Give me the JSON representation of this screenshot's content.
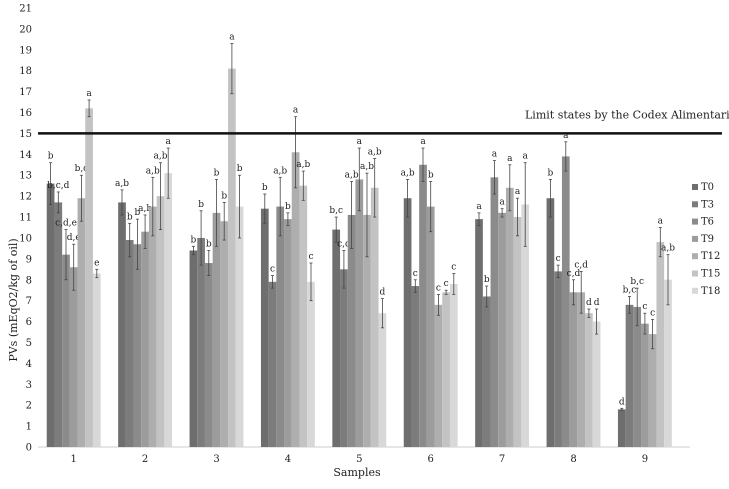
{
  "chart_data": {
    "type": "bar",
    "title": "",
    "xlabel": "Samples",
    "ylabel": "PVs (mEqO2/kg of oil)",
    "ylim": [
      0,
      21
    ],
    "yticks": [
      0,
      1,
      2,
      3,
      4,
      5,
      6,
      7,
      8,
      9,
      10,
      11,
      12,
      13,
      14,
      15,
      16,
      17,
      18,
      19,
      20,
      21
    ],
    "grid": false,
    "legend_position": "right",
    "categories": [
      "1",
      "2",
      "3",
      "4",
      "5",
      "6",
      "7",
      "8",
      "9"
    ],
    "series": [
      {
        "name": "T0",
        "color": "#6e6e6e",
        "values": [
          12.6,
          11.7,
          9.4,
          11.4,
          10.4,
          11.9,
          10.9,
          11.9,
          1.8
        ],
        "errors": [
          1.0,
          0.6,
          0.2,
          0.7,
          0.6,
          0.9,
          0.3,
          0.9,
          0.05
        ],
        "letters": [
          "b",
          "a,b",
          "b",
          "b",
          "b,c",
          "a,b",
          "a",
          "b",
          "d"
        ]
      },
      {
        "name": "T3",
        "color": "#7c7c7c",
        "values": [
          11.7,
          9.9,
          10.0,
          7.9,
          8.5,
          7.7,
          7.2,
          8.4,
          6.8
        ],
        "errors": [
          0.5,
          0.8,
          1.3,
          0.3,
          0.9,
          0.3,
          0.5,
          0.3,
          0.4
        ],
        "letters": [
          "b,c,d",
          "b",
          "b",
          "c",
          "c,d",
          "c",
          "b",
          "c",
          "b,c"
        ]
      },
      {
        "name": "T6",
        "color": "#8b8b8b",
        "values": [
          9.2,
          9.7,
          8.8,
          11.5,
          11.1,
          13.5,
          12.9,
          13.9,
          6.7
        ],
        "errors": [
          1.2,
          1.2,
          0.6,
          1.4,
          1.6,
          0.8,
          0.8,
          0.7,
          0.9
        ],
        "letters": [
          "c,d,e",
          "b",
          "b",
          "a,b",
          "a,b",
          "a",
          "a",
          "a",
          "b,c"
        ]
      },
      {
        "name": "T9",
        "color": "#9c9c9c",
        "values": [
          8.6,
          10.3,
          11.2,
          10.9,
          12.8,
          11.5,
          11.2,
          7.4,
          5.9
        ],
        "errors": [
          1.1,
          0.8,
          1.6,
          0.3,
          1.5,
          1.2,
          0.2,
          0.6,
          0.5
        ],
        "letters": [
          "d,e",
          "a,b",
          "b",
          "b",
          "a",
          "b",
          "a",
          "c,d",
          "c"
        ]
      },
      {
        "name": "T12",
        "color": "#aeaeae",
        "values": [
          11.9,
          11.5,
          10.8,
          14.1,
          11.1,
          6.8,
          12.4,
          7.4,
          5.4
        ],
        "errors": [
          1.1,
          1.4,
          0.9,
          1.7,
          2.0,
          0.5,
          1.1,
          1.0,
          0.7
        ],
        "letters": [
          "b,c",
          "a,b",
          "b",
          "a",
          "a,b",
          "c",
          "a",
          "c,d",
          "c"
        ]
      },
      {
        "name": "T15",
        "color": "#c3c3c3",
        "values": [
          16.2,
          12.0,
          18.1,
          12.5,
          12.4,
          7.4,
          11.0,
          6.4,
          9.8
        ],
        "errors": [
          0.4,
          1.6,
          1.2,
          0.7,
          1.4,
          0.1,
          0.9,
          0.2,
          0.7
        ],
        "letters": [
          "a",
          "a,b",
          "a",
          "a,b",
          "a,b",
          "c",
          "a",
          "d",
          "a"
        ]
      },
      {
        "name": "T18",
        "color": "#d8d8d8",
        "values": [
          8.3,
          13.1,
          11.5,
          7.9,
          6.4,
          7.8,
          11.6,
          6.0,
          8.0
        ],
        "errors": [
          0.2,
          1.2,
          1.5,
          0.9,
          0.7,
          0.5,
          2.0,
          0.6,
          1.2
        ],
        "letters": [
          "e",
          "a",
          "b",
          "c",
          "d",
          "c",
          "a",
          "d",
          "a,b"
        ]
      }
    ],
    "reference_line": {
      "value": 15,
      "label": "Limit states by the Codex Alimentarius"
    }
  }
}
